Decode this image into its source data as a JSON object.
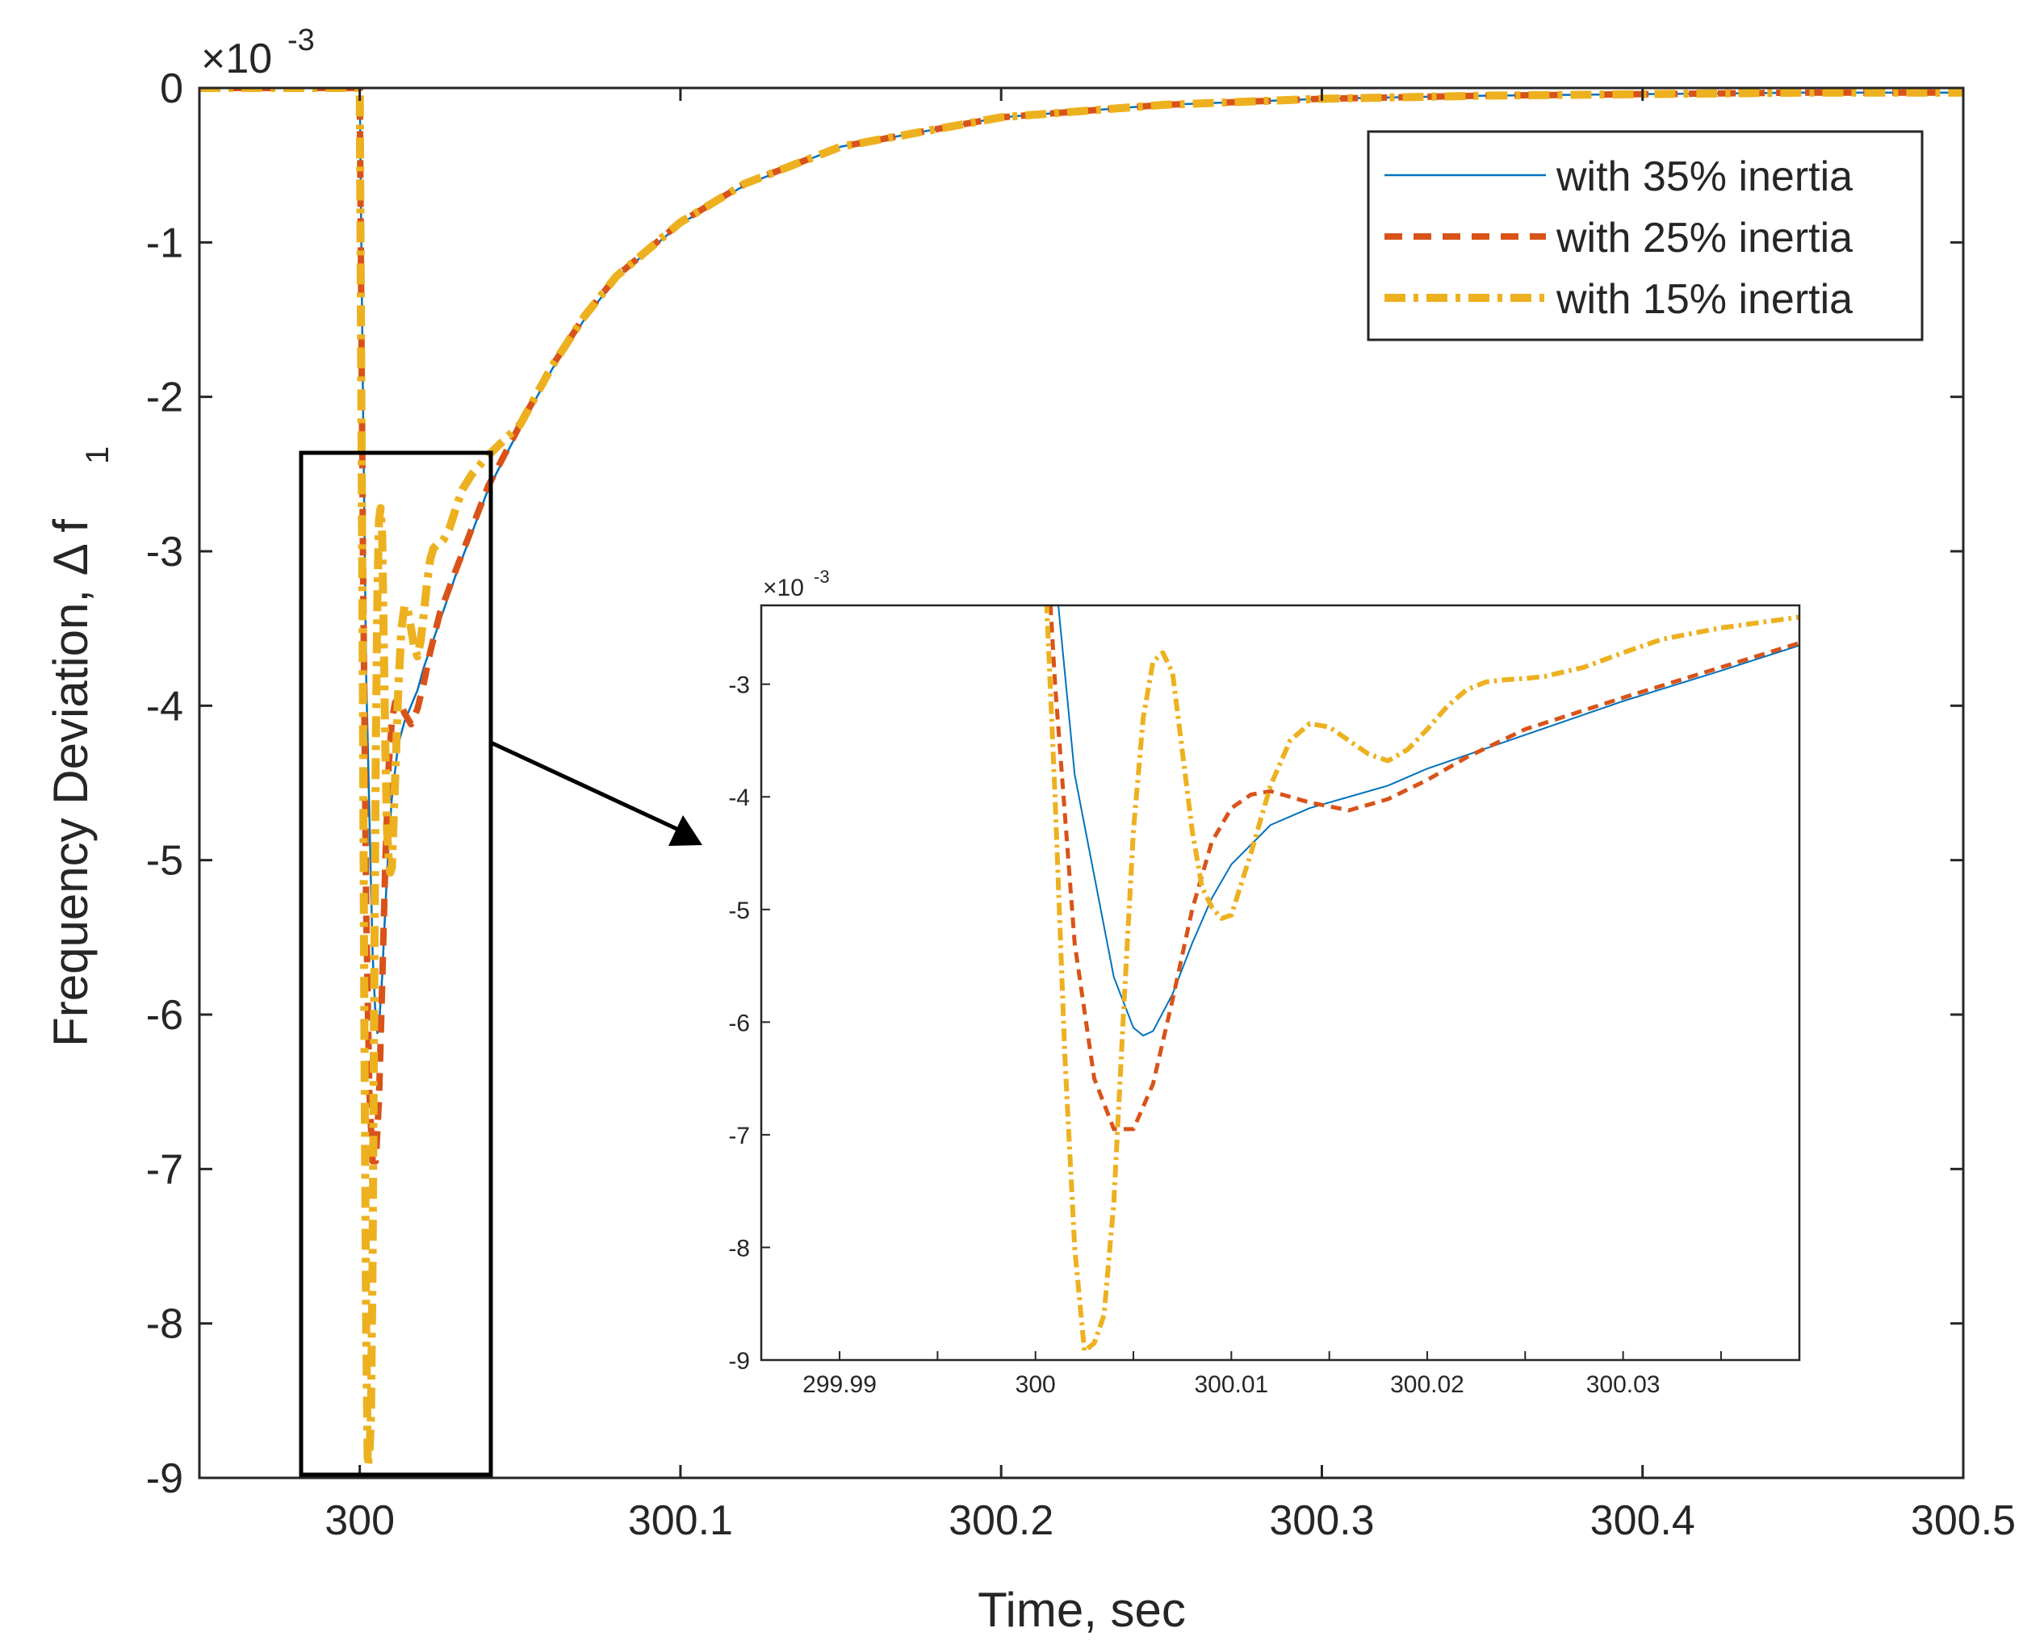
{
  "chart_data": {
    "type": "line",
    "xlabel": "Time, sec",
    "ylabel": "Frequency Deviation, Δ f",
    "ylabel_subscript": "1",
    "exponent_label": "×10",
    "exponent_power": "-3",
    "xlim": [
      299.95,
      300.5
    ],
    "ylim": [
      -9,
      0
    ],
    "x_ticks": [
      300,
      300.1,
      300.2,
      300.3,
      300.4,
      300.5
    ],
    "x_tick_labels": [
      "300",
      "300.1",
      "300.2",
      "300.3",
      "300.4",
      "300.5"
    ],
    "y_ticks": [
      0,
      -1,
      -2,
      -3,
      -4,
      -5,
      -6,
      -7,
      -8,
      -9
    ],
    "y_tick_labels": [
      "0",
      "-1",
      "-2",
      "-3",
      "-4",
      "-5",
      "-6",
      "-7",
      "-8",
      "-9"
    ],
    "series": [
      {
        "name": "with 35% inertia",
        "color": "#0072BD",
        "style": "solid",
        "x": [
          299.95,
          299.99,
          300.0,
          300.001,
          300.002,
          300.003,
          300.004,
          300.005,
          300.0055,
          300.006,
          300.007,
          300.008,
          300.009,
          300.01,
          300.012,
          300.014,
          300.016,
          300.018,
          300.02,
          300.025,
          300.03,
          300.035,
          300.04,
          300.045,
          300.05,
          300.06,
          300.07,
          300.08,
          300.1,
          300.12,
          300.15,
          300.2,
          300.25,
          300.3,
          300.35,
          300.4,
          300.45,
          300.5
        ],
        "y": [
          0,
          0,
          0,
          -2.0,
          -3.8,
          -4.7,
          -5.6,
          -6.05,
          -6.12,
          -6.08,
          -5.75,
          -5.3,
          -4.9,
          -4.6,
          -4.25,
          -4.1,
          -4.0,
          -3.9,
          -3.75,
          -3.45,
          -3.15,
          -2.88,
          -2.6,
          -2.4,
          -2.2,
          -1.82,
          -1.5,
          -1.23,
          -0.88,
          -0.63,
          -0.38,
          -0.19,
          -0.11,
          -0.07,
          -0.05,
          -0.04,
          -0.03,
          -0.03
        ]
      },
      {
        "name": "with 25% inertia",
        "color": "#D95319",
        "style": "dashed",
        "x": [
          299.95,
          299.99,
          300.0,
          300.001,
          300.002,
          300.003,
          300.004,
          300.005,
          300.006,
          300.007,
          300.008,
          300.009,
          300.01,
          300.011,
          300.012,
          300.013,
          300.014,
          300.016,
          300.018,
          300.02,
          300.022,
          300.025,
          300.03,
          300.035,
          300.04,
          300.045,
          300.05,
          300.06,
          300.07,
          300.08,
          300.1,
          300.12,
          300.15,
          300.2,
          300.25,
          300.3,
          300.35,
          300.4,
          300.45,
          300.5
        ],
        "y": [
          0,
          0,
          0,
          -3.0,
          -5.3,
          -6.5,
          -6.95,
          -6.95,
          -6.55,
          -5.8,
          -5.0,
          -4.4,
          -4.1,
          -3.98,
          -3.95,
          -4.0,
          -4.05,
          -4.12,
          -4.02,
          -3.85,
          -3.65,
          -3.4,
          -3.12,
          -2.85,
          -2.58,
          -2.38,
          -2.18,
          -1.8,
          -1.48,
          -1.22,
          -0.87,
          -0.62,
          -0.38,
          -0.19,
          -0.11,
          -0.07,
          -0.05,
          -0.04,
          -0.03,
          -0.03
        ]
      },
      {
        "name": "with 15% inertia",
        "color": "#EDB120",
        "style": "dashdot",
        "x": [
          299.95,
          299.99,
          300.0,
          300.0005,
          300.001,
          300.0015,
          300.002,
          300.0025,
          300.003,
          300.0035,
          300.004,
          300.0045,
          300.005,
          300.0055,
          300.006,
          300.0065,
          300.007,
          300.0075,
          300.008,
          300.0085,
          300.009,
          300.0095,
          300.01,
          300.011,
          300.012,
          300.013,
          300.014,
          300.015,
          300.016,
          300.017,
          300.018,
          300.019,
          300.02,
          300.021,
          300.022,
          300.023,
          300.024,
          300.025,
          300.026,
          300.028,
          300.03,
          300.032,
          300.035,
          300.04,
          300.045,
          300.05,
          300.06,
          300.07,
          300.08,
          300.1,
          300.12,
          300.15,
          300.2,
          300.25,
          300.3,
          300.35,
          300.4,
          300.45,
          300.5
        ],
        "y": [
          0,
          0,
          0,
          -2.0,
          -4.0,
          -6.3,
          -8.0,
          -8.92,
          -8.85,
          -8.6,
          -7.6,
          -5.9,
          -4.3,
          -3.3,
          -2.8,
          -2.72,
          -2.9,
          -3.6,
          -4.3,
          -4.8,
          -4.98,
          -5.08,
          -5.05,
          -4.5,
          -3.9,
          -3.5,
          -3.35,
          -3.38,
          -3.5,
          -3.62,
          -3.68,
          -3.58,
          -3.4,
          -3.2,
          -3.05,
          -2.98,
          -2.96,
          -2.95,
          -2.93,
          -2.85,
          -2.72,
          -2.6,
          -2.5,
          -2.38,
          -2.28,
          -2.18,
          -1.8,
          -1.48,
          -1.22,
          -0.87,
          -0.62,
          -0.38,
          -0.19,
          -0.11,
          -0.07,
          -0.05,
          -0.04,
          -0.03,
          -0.03
        ]
      }
    ],
    "legend": {
      "location": "top-right",
      "entries": [
        "with 35% inertia",
        "with 25% inertia",
        "with 15% inertia"
      ]
    },
    "inset": {
      "xlim": [
        299.986,
        300.039
      ],
      "ylim": [
        -9,
        -2.3
      ],
      "x_ticks": [
        299.99,
        300,
        300.01,
        300.02,
        300.03
      ],
      "x_tick_labels": [
        "299.99",
        "300",
        "300.01",
        "300.02",
        "300.03"
      ],
      "x_minor_ticks": [
        299.995,
        300.005,
        300.015,
        300.025,
        300.035
      ],
      "y_ticks": [
        -3,
        -4,
        -5,
        -6,
        -7,
        -8,
        -9
      ],
      "y_tick_labels": [
        "-3",
        "-4",
        "-5",
        "-6",
        "-7",
        "-8",
        "-9"
      ],
      "exponent_label": "×10",
      "exponent_power": "-3",
      "zoom_region": {
        "x": [
          299.99,
          300.04
        ],
        "y": [
          -8.95,
          -2.35
        ]
      }
    }
  }
}
